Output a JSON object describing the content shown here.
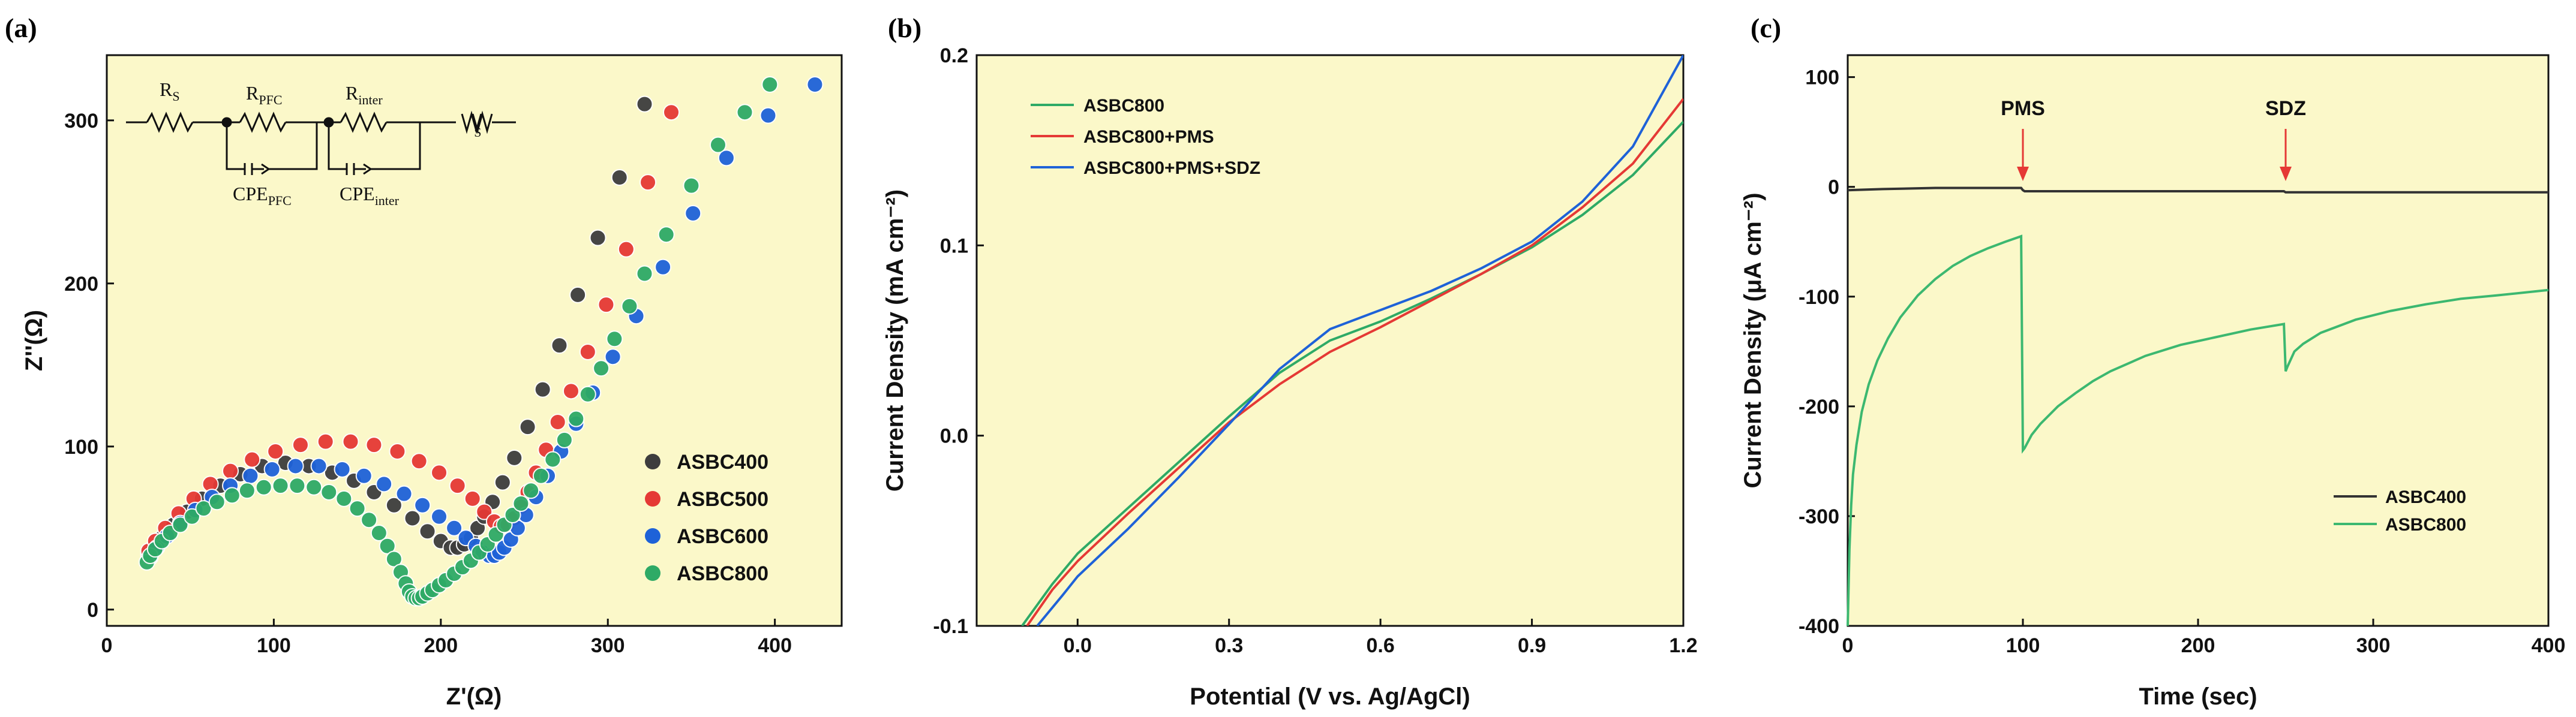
{
  "panels": [
    "(a)",
    "(b)",
    "(c)"
  ],
  "chart_data": [
    {
      "type": "scatter",
      "panel": "(a)",
      "title": "",
      "xlabel": "Z'(Ω)",
      "ylabel": "Z''(Ω)",
      "xlim": [
        0,
        440
      ],
      "ylim": [
        -10,
        340
      ],
      "xticks": [
        0,
        100,
        200,
        300,
        400
      ],
      "yticks": [
        0,
        100,
        200,
        300
      ],
      "legend_position": "bottom-right",
      "circuit": {
        "elements": [
          "R",
          "S",
          "R",
          "PFC",
          "R",
          "inter",
          "W",
          "S",
          "CPE",
          "PFC",
          "CPE",
          "inter"
        ]
      },
      "series": [
        {
          "name": "ASBC400",
          "color": "#3d3d3d",
          "points": [
            [
              25,
              34
            ],
            [
              28,
              38
            ],
            [
              33,
              44
            ],
            [
              40,
              52
            ],
            [
              48,
              60
            ],
            [
              57,
              68
            ],
            [
              68,
              76
            ],
            [
              80,
              83
            ],
            [
              93,
              88
            ],
            [
              107,
              90
            ],
            [
              121,
              88
            ],
            [
              135,
              84
            ],
            [
              148,
              79
            ],
            [
              160,
              72
            ],
            [
              172,
              64
            ],
            [
              183,
              56
            ],
            [
              192,
              48
            ],
            [
              200,
              42
            ],
            [
              206,
              38
            ],
            [
              210,
              38
            ],
            [
              214,
              40
            ],
            [
              218,
              44
            ],
            [
              222,
              50
            ],
            [
              226,
              57
            ],
            [
              231,
              66
            ],
            [
              237,
              78
            ],
            [
              244,
              93
            ],
            [
              252,
              112
            ],
            [
              261,
              135
            ],
            [
              271,
              162
            ],
            [
              282,
              193
            ],
            [
              294,
              228
            ],
            [
              307,
              265
            ],
            [
              322,
              310
            ]
          ]
        },
        {
          "name": "ASBC500",
          "color": "#e53935",
          "points": [
            [
              25,
              36
            ],
            [
              29,
              42
            ],
            [
              35,
              50
            ],
            [
              43,
              59
            ],
            [
              52,
              68
            ],
            [
              62,
              77
            ],
            [
              74,
              85
            ],
            [
              87,
              92
            ],
            [
              101,
              97
            ],
            [
              116,
              101
            ],
            [
              131,
              103
            ],
            [
              146,
              103
            ],
            [
              160,
              101
            ],
            [
              174,
              97
            ],
            [
              187,
              91
            ],
            [
              199,
              84
            ],
            [
              210,
              76
            ],
            [
              219,
              68
            ],
            [
              226,
              60
            ],
            [
              232,
              54
            ],
            [
              236,
              51
            ],
            [
              240,
              52
            ],
            [
              244,
              56
            ],
            [
              248,
              63
            ],
            [
              252,
              72
            ],
            [
              257,
              84
            ],
            [
              263,
              98
            ],
            [
              270,
              115
            ],
            [
              278,
              134
            ],
            [
              288,
              158
            ],
            [
              299,
              187
            ],
            [
              311,
              221
            ],
            [
              324,
              262
            ],
            [
              338,
              305
            ]
          ]
        },
        {
          "name": "ASBC600",
          "color": "#1e62d8",
          "points": [
            [
              26,
              32
            ],
            [
              30,
              38
            ],
            [
              36,
              45
            ],
            [
              44,
              53
            ],
            [
              53,
              61
            ],
            [
              63,
              69
            ],
            [
              74,
              76
            ],
            [
              86,
              82
            ],
            [
              99,
              86
            ],
            [
              113,
              88
            ],
            [
              127,
              88
            ],
            [
              141,
              86
            ],
            [
              154,
              82
            ],
            [
              166,
              77
            ],
            [
              178,
              71
            ],
            [
              189,
              64
            ],
            [
              199,
              57
            ],
            [
              208,
              50
            ],
            [
              215,
              44
            ],
            [
              221,
              39
            ],
            [
              225,
              35
            ],
            [
              229,
              33
            ],
            [
              232,
              33
            ],
            [
              235,
              35
            ],
            [
              238,
              38
            ],
            [
              242,
              43
            ],
            [
              246,
              50
            ],
            [
              251,
              58
            ],
            [
              257,
              69
            ],
            [
              264,
              82
            ],
            [
              272,
              97
            ],
            [
              281,
              114
            ],
            [
              291,
              133
            ],
            [
              303,
              155
            ],
            [
              317,
              180
            ],
            [
              333,
              210
            ],
            [
              351,
              243
            ],
            [
              371,
              277
            ],
            [
              396,
              303
            ],
            [
              424,
              322
            ]
          ]
        },
        {
          "name": "ASBC800",
          "color": "#2eaa66",
          "points": [
            [
              24,
              29
            ],
            [
              26,
              33
            ],
            [
              29,
              37
            ],
            [
              33,
              42
            ],
            [
              38,
              47
            ],
            [
              44,
              52
            ],
            [
              51,
              57
            ],
            [
              58,
              62
            ],
            [
              66,
              66
            ],
            [
              75,
              70
            ],
            [
              84,
              73
            ],
            [
              94,
              75
            ],
            [
              104,
              76
            ],
            [
              114,
              76
            ],
            [
              124,
              75
            ],
            [
              133,
              72
            ],
            [
              142,
              68
            ],
            [
              150,
              62
            ],
            [
              157,
              55
            ],
            [
              163,
              47
            ],
            [
              168,
              39
            ],
            [
              172,
              31
            ],
            [
              176,
              23
            ],
            [
              179,
              16
            ],
            [
              181,
              11
            ],
            [
              183,
              8
            ],
            [
              185,
              7
            ],
            [
              187,
              7
            ],
            [
              189,
              8
            ],
            [
              192,
              10
            ],
            [
              195,
              12
            ],
            [
              199,
              15
            ],
            [
              203,
              18
            ],
            [
              208,
              22
            ],
            [
              213,
              26
            ],
            [
              218,
              30
            ],
            [
              223,
              35
            ],
            [
              228,
              40
            ],
            [
              233,
              46
            ],
            [
              238,
              52
            ],
            [
              243,
              58
            ],
            [
              248,
              65
            ],
            [
              254,
              73
            ],
            [
              260,
              82
            ],
            [
              267,
              92
            ],
            [
              274,
              104
            ],
            [
              281,
              117
            ],
            [
              288,
              132
            ],
            [
              296,
              148
            ],
            [
              304,
              166
            ],
            [
              313,
              186
            ],
            [
              322,
              206
            ],
            [
              335,
              230
            ],
            [
              350,
              260
            ],
            [
              366,
              285
            ],
            [
              382,
              305
            ],
            [
              397,
              322
            ]
          ]
        }
      ]
    },
    {
      "type": "line",
      "panel": "(b)",
      "title": "",
      "xlabel": "Potential (V vs. Ag/AgCl)",
      "ylabel": "Current Density (mA cm⁻²)",
      "xlim": [
        -0.2,
        1.2
      ],
      "ylim": [
        -0.1,
        0.2
      ],
      "xticks": [
        0.0,
        0.3,
        0.6,
        0.9,
        1.2
      ],
      "xtick_labels": [
        "0.0",
        "0.3",
        "0.6",
        "0.9",
        "1.2"
      ],
      "yticks": [
        -0.1,
        0.0,
        0.1,
        0.2
      ],
      "ytick_labels": [
        "-0.1",
        "0.0",
        "0.1",
        "0.2"
      ],
      "legend_position": "top-left",
      "series": [
        {
          "name": "ASBC800",
          "color": "#2eaa66",
          "x": [
            -0.11,
            -0.05,
            0.0,
            0.1,
            0.2,
            0.3,
            0.4,
            0.5,
            0.6,
            0.7,
            0.8,
            0.9,
            1.0,
            1.1,
            1.2
          ],
          "y": [
            -0.1,
            -0.078,
            -0.062,
            -0.038,
            -0.014,
            0.01,
            0.033,
            0.05,
            0.06,
            0.072,
            0.085,
            0.099,
            0.116,
            0.137,
            0.165
          ]
        },
        {
          "name": "ASBC800+PMS",
          "color": "#e53935",
          "x": [
            -0.1,
            -0.05,
            0.0,
            0.1,
            0.2,
            0.3,
            0.4,
            0.5,
            0.6,
            0.7,
            0.8,
            0.9,
            1.0,
            1.1,
            1.2
          ],
          "y": [
            -0.1,
            -0.081,
            -0.066,
            -0.041,
            -0.017,
            0.007,
            0.027,
            0.044,
            0.057,
            0.071,
            0.085,
            0.1,
            0.12,
            0.143,
            0.177
          ]
        },
        {
          "name": "ASBC800+PMS+SDZ",
          "color": "#1e62d8",
          "x": [
            -0.08,
            -0.03,
            0.0,
            0.1,
            0.2,
            0.3,
            0.4,
            0.5,
            0.6,
            0.7,
            0.8,
            0.9,
            1.0,
            1.1,
            1.2
          ],
          "y": [
            -0.1,
            -0.084,
            -0.074,
            -0.049,
            -0.022,
            0.006,
            0.035,
            0.056,
            0.066,
            0.076,
            0.088,
            0.102,
            0.123,
            0.152,
            0.2
          ]
        }
      ]
    },
    {
      "type": "line",
      "panel": "(c)",
      "title": "",
      "xlabel": "Time (sec)",
      "ylabel": "Current Density (μA cm⁻²)",
      "xlim": [
        0,
        400
      ],
      "ylim": [
        -400,
        120
      ],
      "xticks": [
        0,
        100,
        200,
        300,
        400
      ],
      "yticks": [
        -400,
        -300,
        -200,
        -100,
        0,
        100
      ],
      "legend_position": "bottom-right",
      "annotations": [
        {
          "text": "PMS",
          "x": 100
        },
        {
          "text": "SDZ",
          "x": 250
        }
      ],
      "series": [
        {
          "name": "ASBC400",
          "color": "#333333",
          "x": [
            0,
            20,
            50,
            80,
            99,
            100,
            101,
            150,
            200,
            249,
            250,
            251,
            300,
            350,
            400
          ],
          "y": [
            -3,
            -2,
            -1,
            -1,
            -1,
            -3,
            -4,
            -4,
            -4,
            -4,
            -5,
            -5,
            -5,
            -5,
            -5
          ]
        },
        {
          "name": "ASBC800",
          "color": "#3cb870",
          "x": [
            0,
            1,
            2,
            3,
            5,
            8,
            12,
            17,
            23,
            30,
            40,
            50,
            60,
            70,
            80,
            90,
            99,
            100,
            101,
            105,
            110,
            120,
            130,
            140,
            150,
            170,
            190,
            210,
            230,
            249,
            250,
            251,
            255,
            260,
            270,
            290,
            310,
            330,
            350,
            370,
            400
          ],
          "y": [
            -400,
            -330,
            -290,
            -262,
            -235,
            -205,
            -180,
            -158,
            -138,
            -119,
            -99,
            -84,
            -72,
            -63,
            -56,
            -50,
            -45,
            -240,
            -238,
            -226,
            -216,
            -200,
            -188,
            -177,
            -168,
            -154,
            -144,
            -137,
            -130,
            -125,
            -168,
            -164,
            -150,
            -143,
            -133,
            -121,
            -113,
            -107,
            -102,
            -99,
            -94
          ]
        }
      ]
    }
  ]
}
